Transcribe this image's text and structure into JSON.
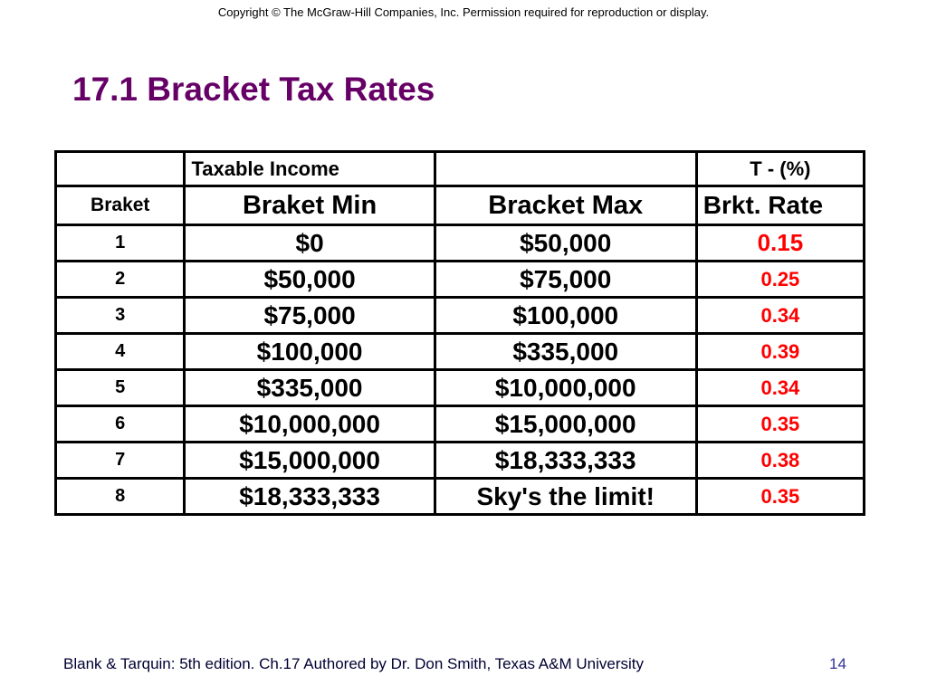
{
  "copyright": "Copyright © The McGraw-Hill Companies, Inc. Permission required for reproduction or display.",
  "title": "17.1 Bracket Tax Rates",
  "table": {
    "header_row_1": [
      "",
      "Taxable Income",
      "",
      "T - (%)"
    ],
    "header_row_2": [
      "Braket",
      "Braket Min",
      "Bracket Max",
      "Brkt. Rate"
    ],
    "rows": [
      {
        "bracket": "1",
        "min": "$0",
        "max": "$50,000",
        "rate": "0.15"
      },
      {
        "bracket": "2",
        "min": "$50,000",
        "max": "$75,000",
        "rate": "0.25"
      },
      {
        "bracket": "3",
        "min": "$75,000",
        "max": "$100,000",
        "rate": "0.34"
      },
      {
        "bracket": "4",
        "min": "$100,000",
        "max": "$335,000",
        "rate": "0.39"
      },
      {
        "bracket": "5",
        "min": "$335,000",
        "max": "$10,000,000",
        "rate": "0.34"
      },
      {
        "bracket": "6",
        "min": "$10,000,000",
        "max": "$15,000,000",
        "rate": "0.35"
      },
      {
        "bracket": "7",
        "min": "$15,000,000",
        "max": "$18,333,333",
        "rate": "0.38"
      },
      {
        "bracket": "8",
        "min": "$18,333,333",
        "max": "Sky's the limit!",
        "rate": "0.35"
      }
    ]
  },
  "colors": {
    "title": "#660066",
    "rate": "#ff0000"
  },
  "footer": {
    "text": "Blank & Tarquin: 5th edition. Ch.17 Authored by Dr. Don Smith, Texas A&M University",
    "page_number": "14"
  }
}
